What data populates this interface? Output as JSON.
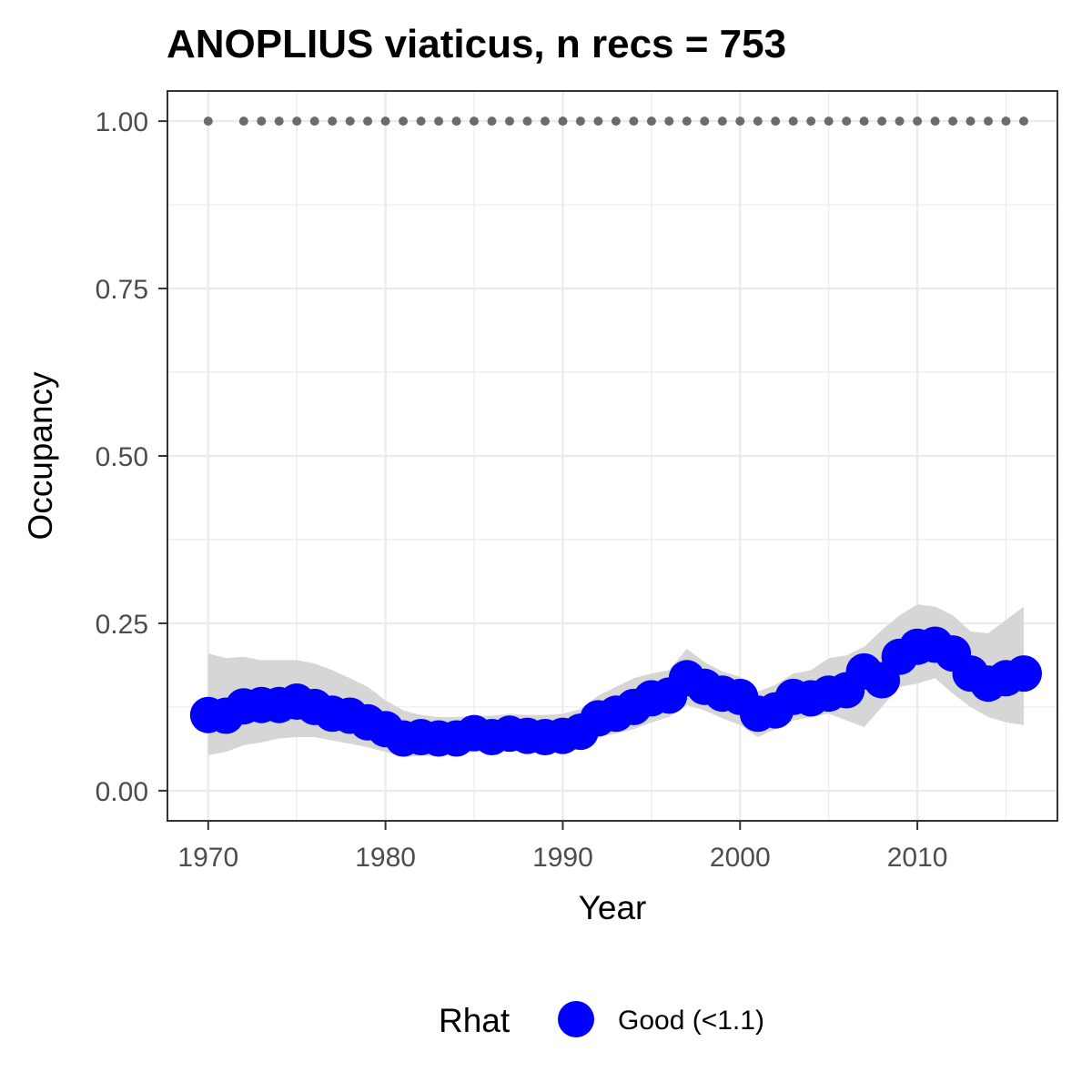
{
  "chart_data": {
    "type": "line",
    "title": "ANOPLIUS viaticus, n recs = 753",
    "xlabel": "Year",
    "ylabel": "Occupancy",
    "xlim": [
      1967.7,
      2017.9
    ],
    "ylim": [
      -0.045,
      1.045
    ],
    "x_ticks": [
      1970,
      1980,
      1990,
      2000,
      2010
    ],
    "x_tick_labels": [
      "1970",
      "1980",
      "1990",
      "2000",
      "2010"
    ],
    "y_ticks": [
      0,
      0.25,
      0.5,
      0.75,
      1
    ],
    "y_tick_labels": [
      "0.00",
      "0.25",
      "0.50",
      "0.75",
      "1.00"
    ],
    "grid": true,
    "legend": {
      "title": "Rhat",
      "placement": "bottom",
      "entries": [
        {
          "label": "Good (<1.1)",
          "color": "#0000ff"
        }
      ]
    },
    "colors": {
      "points": "#0000ff",
      "ribbon": "#d6d6d6",
      "top_dots": "#6b6b6b",
      "grid": "#ebebeb",
      "panel_border": "#333333"
    },
    "x": [
      1970,
      1971,
      1972,
      1973,
      1974,
      1975,
      1976,
      1977,
      1978,
      1979,
      1980,
      1981,
      1982,
      1983,
      1984,
      1985,
      1986,
      1987,
      1988,
      1989,
      1990,
      1991,
      1992,
      1993,
      1994,
      1995,
      1996,
      1997,
      1998,
      1999,
      2000,
      2001,
      2002,
      2003,
      2004,
      2005,
      2006,
      2007,
      2008,
      2009,
      2010,
      2011,
      2012,
      2013,
      2014,
      2015,
      2016
    ],
    "series": [
      {
        "name": "Good (<1.1)",
        "values": [
          0.113,
          0.112,
          0.126,
          0.128,
          0.128,
          0.133,
          0.125,
          0.115,
          0.112,
          0.102,
          0.092,
          0.078,
          0.08,
          0.078,
          0.078,
          0.086,
          0.08,
          0.085,
          0.082,
          0.08,
          0.082,
          0.088,
          0.108,
          0.115,
          0.125,
          0.138,
          0.142,
          0.168,
          0.155,
          0.145,
          0.14,
          0.115,
          0.12,
          0.14,
          0.138,
          0.145,
          0.15,
          0.178,
          0.165,
          0.2,
          0.215,
          0.218,
          0.205,
          0.175,
          0.16,
          0.168,
          0.175
        ],
        "lower": [
          0.053,
          0.058,
          0.068,
          0.072,
          0.078,
          0.08,
          0.08,
          0.075,
          0.07,
          0.065,
          0.058,
          0.05,
          0.052,
          0.052,
          0.055,
          0.058,
          0.058,
          0.06,
          0.058,
          0.056,
          0.058,
          0.062,
          0.08,
          0.085,
          0.092,
          0.102,
          0.11,
          0.128,
          0.12,
          0.108,
          0.098,
          0.08,
          0.092,
          0.105,
          0.11,
          0.115,
          0.105,
          0.095,
          0.125,
          0.155,
          0.16,
          0.168,
          0.145,
          0.125,
          0.11,
          0.102,
          0.098
        ],
        "upper": [
          0.205,
          0.198,
          0.2,
          0.195,
          0.195,
          0.195,
          0.19,
          0.18,
          0.168,
          0.155,
          0.135,
          0.12,
          0.113,
          0.11,
          0.11,
          0.112,
          0.112,
          0.115,
          0.113,
          0.113,
          0.115,
          0.122,
          0.142,
          0.155,
          0.168,
          0.175,
          0.18,
          0.212,
          0.192,
          0.178,
          0.17,
          0.148,
          0.158,
          0.175,
          0.18,
          0.198,
          0.202,
          0.215,
          0.24,
          0.262,
          0.278,
          0.275,
          0.262,
          0.238,
          0.235,
          0.255,
          0.275
        ]
      }
    ],
    "top_series": {
      "x": [
        1970,
        1972,
        1973,
        1974,
        1975,
        1976,
        1977,
        1978,
        1979,
        1980,
        1981,
        1982,
        1983,
        1984,
        1985,
        1986,
        1987,
        1988,
        1989,
        1990,
        1991,
        1992,
        1993,
        1994,
        1995,
        1996,
        1997,
        1998,
        1999,
        2000,
        2001,
        2002,
        2003,
        2004,
        2005,
        2006,
        2007,
        2008,
        2009,
        2010,
        2011,
        2012,
        2013,
        2014,
        2015,
        2016
      ],
      "values": [
        1,
        1,
        1,
        1,
        1,
        1,
        1,
        1,
        1,
        1,
        1,
        1,
        1,
        1,
        1,
        1,
        1,
        1,
        1,
        1,
        1,
        1,
        1,
        1,
        1,
        1,
        1,
        1,
        1,
        1,
        1,
        1,
        1,
        1,
        1,
        1,
        1,
        1,
        1,
        1,
        1,
        1,
        1,
        1,
        1,
        1
      ]
    }
  }
}
